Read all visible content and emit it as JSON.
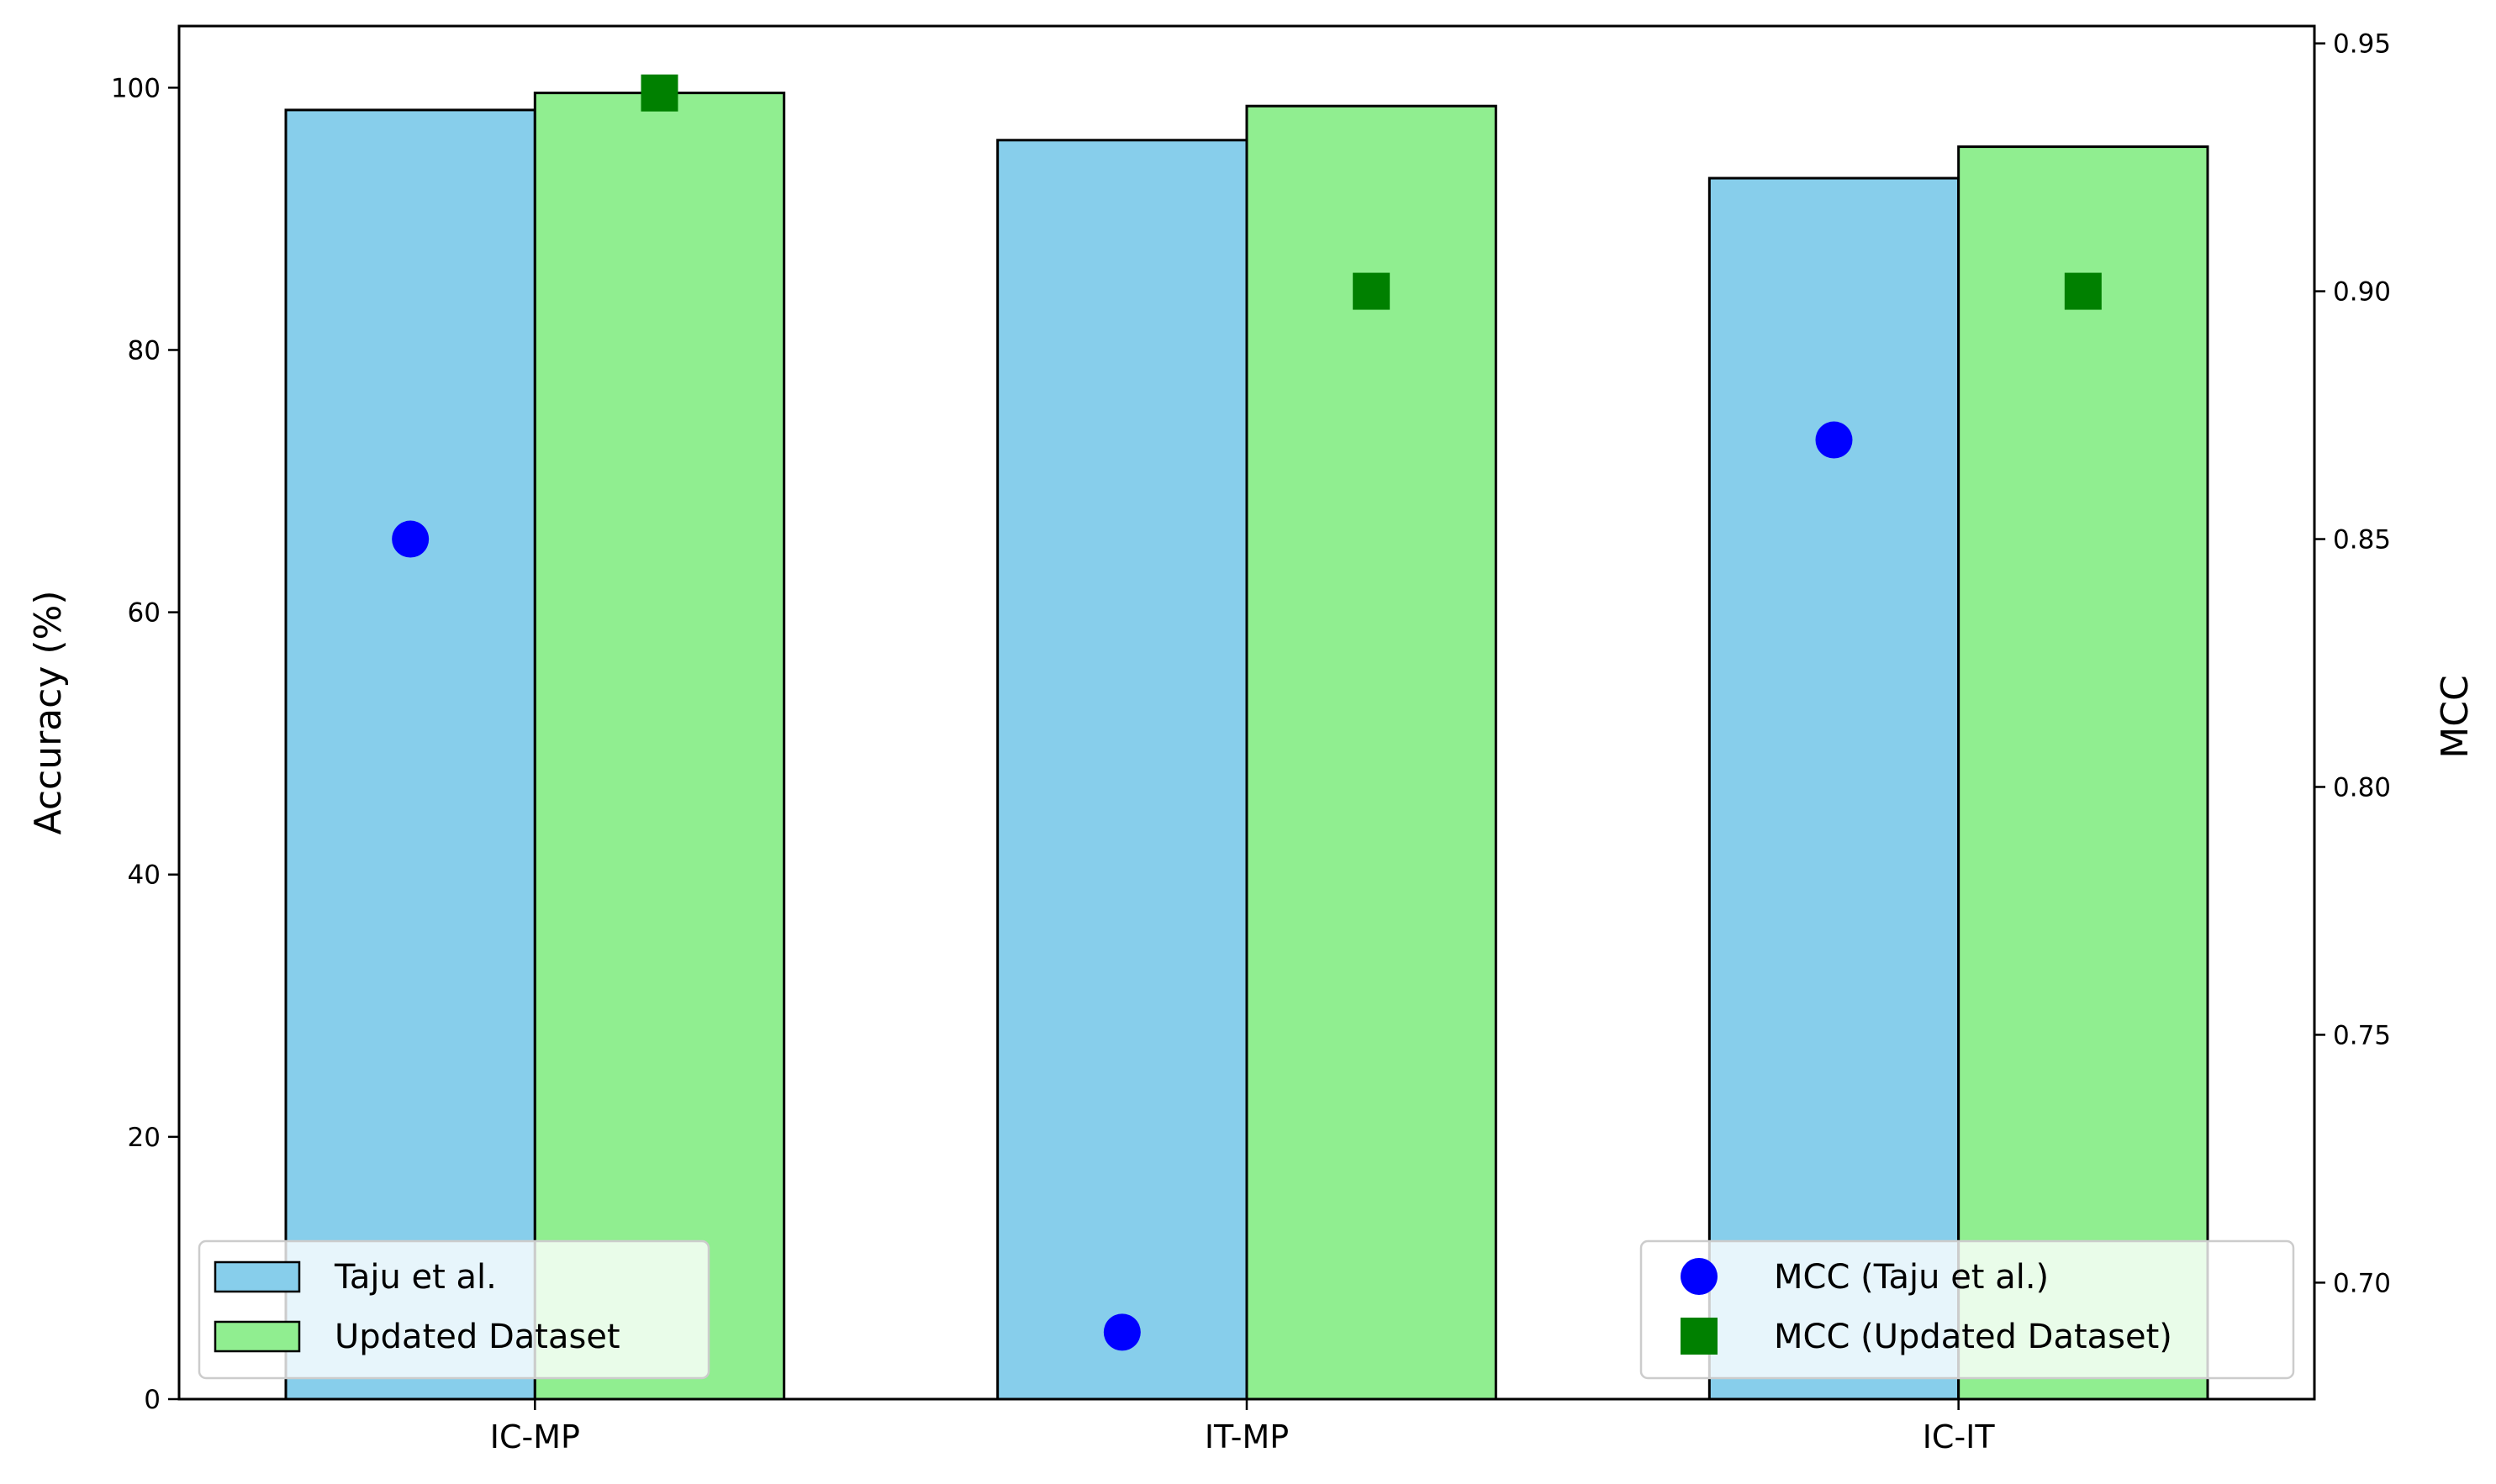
{
  "chart_data": {
    "type": "bar",
    "categories": [
      "IC-MP",
      "IT-MP",
      "IC-IT"
    ],
    "series": [
      {
        "name": "Taju et al.",
        "values": [
          98.3,
          96.0,
          93.1
        ],
        "color": "#87CEEB",
        "axis": "left"
      },
      {
        "name": "Updated Dataset",
        "values": [
          99.6,
          98.6,
          95.5
        ],
        "color": "#90EE90",
        "axis": "left"
      }
    ],
    "markers": [
      {
        "name": "MCC (Taju et al.)",
        "values": [
          0.85,
          0.69,
          0.87
        ],
        "color": "#0000FF",
        "shape": "circle",
        "axis": "right"
      },
      {
        "name": "MCC (Updated Dataset)",
        "values": [
          0.94,
          0.9,
          0.9
        ],
        "color": "#008000",
        "shape": "square",
        "axis": "right"
      }
    ],
    "ylabel": "Accuracy (%)",
    "y2label": "MCC",
    "ylim": [
      0,
      104.7
    ],
    "y2lim": [
      0.6765,
      0.9535
    ],
    "yticks": [
      0,
      20,
      40,
      60,
      80,
      100
    ],
    "y2ticks": [
      0.7,
      0.75,
      0.8,
      0.85,
      0.9,
      0.95
    ],
    "y2tick_labels": [
      "0.70",
      "0.75",
      "0.80",
      "0.85",
      "0.90",
      "0.95"
    ],
    "legend_left": "lower-left",
    "legend_right": "lower-right",
    "grid": false
  }
}
